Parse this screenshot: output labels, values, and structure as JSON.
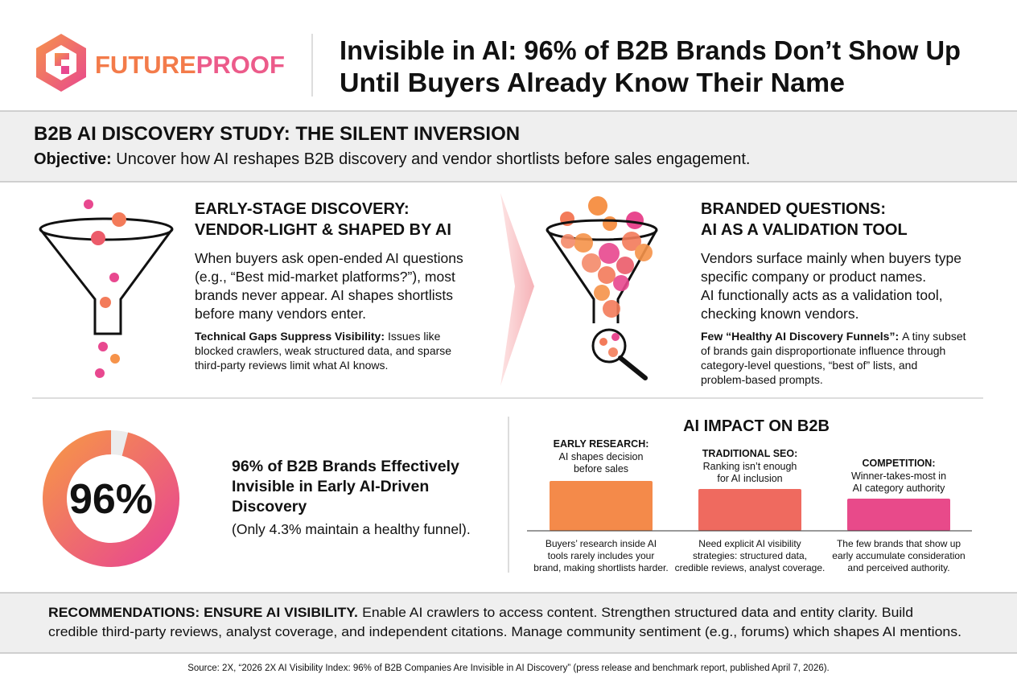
{
  "header": {
    "logo": {
      "part1": "FUTURE",
      "part2": "PROOF"
    },
    "title": [
      "Invisible in AI: 96% of B2B Brands Don’t Show Up",
      "Until Buyers Already Know Their Name"
    ]
  },
  "study": {
    "title": "B2B AI DISCOVERY STUDY: THE SILENT INVERSION",
    "objective_label": "Objective:",
    "objective": "Uncover how AI reshapes B2B discovery and vendor shortlists before sales engagement."
  },
  "early": {
    "heading": [
      "EARLY-STAGE DISCOVERY:",
      "VENDOR-LIGHT & SHAPED BY AI"
    ],
    "body": [
      "When buyers ask open-ended AI questions",
      "(e.g., “Best mid-market platforms?”), most",
      "brands never appear. AI shapes shortlists",
      "before many vendors enter."
    ],
    "note_label": "Technical Gaps Suppress Visibility:",
    "note": [
      "Issues like",
      "blocked crawlers, weak structured data, and sparse",
      "third-party reviews limit what AI knows."
    ]
  },
  "branded": {
    "heading": [
      "BRANDED QUESTIONS:",
      "AI AS A VALIDATION TOOL"
    ],
    "body": [
      "Vendors surface mainly when buyers type",
      "specific company or product names.",
      "AI functionally acts as a validation tool,",
      "checking known vendors."
    ],
    "note_label": "Few “Healthy AI Discovery Funnels”:",
    "note": [
      "A tiny subset",
      "of brands gain disproportionate influence through",
      "category-level questions, “best of” lists, and",
      "problem-based prompts."
    ]
  },
  "stat": {
    "value": 96,
    "label": "96%",
    "headline": [
      "96% of B2B Brands Effectively",
      "Invisible in Early AI-Driven",
      "Discovery"
    ],
    "note": "(Only 4.3% maintain a healthy funnel)."
  },
  "impact": {
    "title": "AI IMPACT ON B2B",
    "columns": [
      {
        "label": "EARLY RESEARCH:",
        "text": [
          "AI shapes decision",
          "before sales"
        ],
        "caption": [
          "Buyers’ research inside AI",
          "tools rarely includes your",
          "brand, making shortlists harder."
        ]
      },
      {
        "label": "TRADITIONAL SEO:",
        "text": [
          "Ranking isn’t enough",
          "for AI inclusion"
        ],
        "caption": [
          "Need explicit AI visibility",
          "strategies: structured data,",
          "credible reviews, analyst coverage."
        ]
      },
      {
        "label": "COMPETITION:",
        "text": [
          "Winner-takes-most in",
          "AI category authority"
        ],
        "caption": [
          "The few brands that show up",
          "early accumulate consideration",
          "and perceived authority."
        ]
      }
    ]
  },
  "recommendations": {
    "label": "RECOMMENDATIONS: ENSURE AI VISIBILITY.",
    "text": [
      "Enable AI crawlers to access content. Strengthen structured data and entity clarity. Build",
      "credible third-party reviews, analyst coverage, and independent citations. Manage community sentiment (e.g., forums) which shapes AI mentions."
    ]
  },
  "source": "Source: 2X, “2026 2X AI Visibility Index: 96% of B2B Companies Are Invisible in AI Discovery” (press release and benchmark report, published April 7, 2026)."
}
